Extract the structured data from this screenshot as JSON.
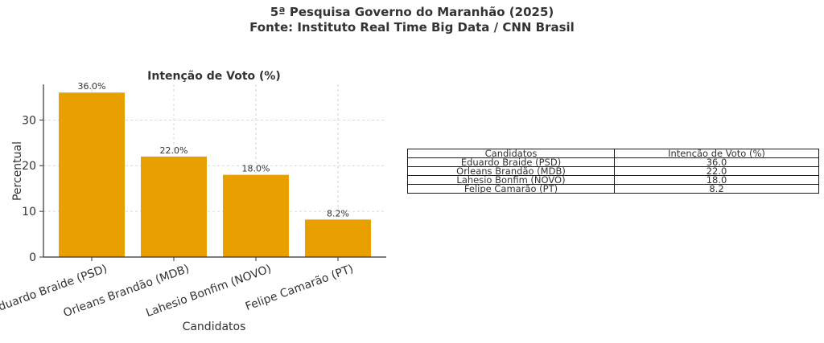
{
  "suptitle": [
    "5ª Pesquisa Governo do Maranhão (2025)",
    "Fonte: Instituto Real Time Big Data / CNN Brasil"
  ],
  "chart_data": {
    "type": "bar",
    "title": "Intenção de Voto (%)",
    "xlabel": "Candidatos",
    "ylabel": "Percentual",
    "categories": [
      "Eduardo Braide (PSD)",
      "Orleans Brandão (MDB)",
      "Lahesio Bonfim (NOVO)",
      "Felipe Camarão (PT)"
    ],
    "values": [
      36.0,
      22.0,
      18.0,
      8.2
    ],
    "data_labels": [
      "36.0%",
      "22.0%",
      "18.0%",
      "8.2%"
    ],
    "yticks": [
      0,
      10,
      20,
      30
    ],
    "ylim": [
      0,
      37.8
    ],
    "grid": true,
    "bar_color": "#E8A000"
  },
  "table": {
    "headers": [
      "Candidatos",
      "Intenção de Voto (%)"
    ],
    "rows": [
      [
        "Eduardo Braide (PSD)",
        "36.0"
      ],
      [
        "Orleans Brandão (MDB)",
        "22.0"
      ],
      [
        "Lahesio Bonfim (NOVO)",
        "18.0"
      ],
      [
        "Felipe Camarão (PT)",
        "8.2"
      ]
    ]
  }
}
